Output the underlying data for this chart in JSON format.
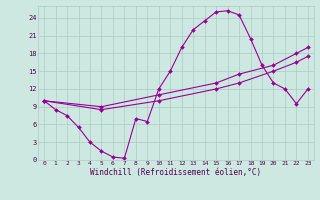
{
  "background_color": "#cde8e0",
  "grid_color": "#aaccc4",
  "line_color": "#990099",
  "xlabel": "Windchill (Refroidissement éolien,°C)",
  "xlim": [
    -0.5,
    23.5
  ],
  "ylim": [
    0,
    26
  ],
  "xticks": [
    0,
    1,
    2,
    3,
    4,
    5,
    6,
    7,
    8,
    9,
    10,
    11,
    12,
    13,
    14,
    15,
    16,
    17,
    18,
    19,
    20,
    21,
    22,
    23
  ],
  "yticks": [
    0,
    3,
    6,
    9,
    12,
    15,
    18,
    21,
    24
  ],
  "series1": [
    [
      0,
      10
    ],
    [
      1,
      8.5
    ],
    [
      2,
      7.5
    ],
    [
      3,
      5.5
    ],
    [
      4,
      3
    ],
    [
      5,
      1.5
    ],
    [
      6,
      0.5
    ],
    [
      7,
      0.3
    ],
    [
      8,
      7
    ],
    [
      9,
      6.5
    ],
    [
      10,
      12
    ],
    [
      11,
      15
    ],
    [
      12,
      19
    ],
    [
      13,
      22
    ],
    [
      14,
      23.5
    ],
    [
      15,
      25
    ],
    [
      16,
      25.2
    ],
    [
      17,
      24.5
    ],
    [
      18,
      20.5
    ],
    [
      19,
      16
    ],
    [
      20,
      13
    ],
    [
      21,
      12
    ],
    [
      22,
      9.5
    ],
    [
      23,
      12
    ]
  ],
  "series2": [
    [
      0,
      10
    ],
    [
      5,
      9
    ],
    [
      10,
      11
    ],
    [
      15,
      13
    ],
    [
      17,
      14.5
    ],
    [
      20,
      16
    ],
    [
      22,
      18
    ],
    [
      23,
      19
    ]
  ],
  "series3": [
    [
      0,
      10
    ],
    [
      5,
      8.5
    ],
    [
      10,
      10
    ],
    [
      15,
      12
    ],
    [
      17,
      13
    ],
    [
      20,
      15
    ],
    [
      22,
      16.5
    ],
    [
      23,
      17.5
    ]
  ],
  "font_color": "#550055",
  "title_color": "#550055"
}
